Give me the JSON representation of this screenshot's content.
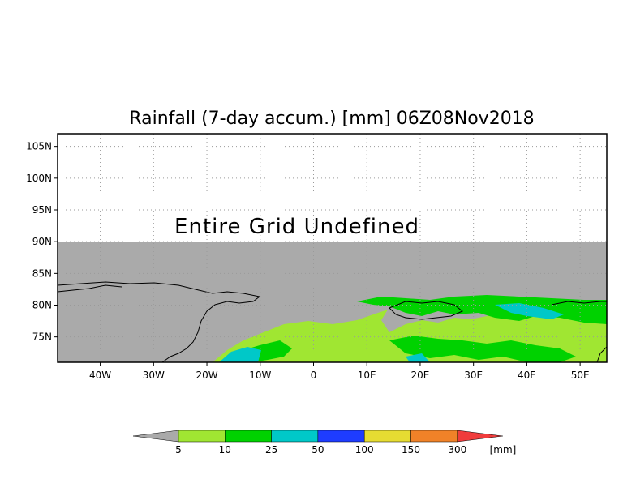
{
  "title": "Rainfall (7-day accum.) [mm] 06Z08Nov2018",
  "overlay_message": "Entire Grid Undefined",
  "map": {
    "lon_range": [
      -48,
      55
    ],
    "lat_range": [
      71,
      107
    ],
    "lon_ticks": [
      {
        "value": -40,
        "label": "40W"
      },
      {
        "value": -30,
        "label": "30W"
      },
      {
        "value": -20,
        "label": "20W"
      },
      {
        "value": -10,
        "label": "10W"
      },
      {
        "value": 0,
        "label": "0"
      },
      {
        "value": 10,
        "label": "10E"
      },
      {
        "value": 20,
        "label": "20E"
      },
      {
        "value": 30,
        "label": "30E"
      },
      {
        "value": 40,
        "label": "40E"
      },
      {
        "value": 50,
        "label": "50E"
      }
    ],
    "lat_ticks": [
      {
        "value": 75,
        "label": "75N"
      },
      {
        "value": 80,
        "label": "80N"
      },
      {
        "value": 85,
        "label": "85N"
      },
      {
        "value": 90,
        "label": "90N"
      },
      {
        "value": 95,
        "label": "95N"
      },
      {
        "value": 100,
        "label": "100N"
      },
      {
        "value": 105,
        "label": "105N"
      }
    ],
    "undefined_above_lat": 90,
    "land_color": "#aaaaaa",
    "colors": {
      "light_green": "#a0e632",
      "green": "#00d200",
      "teal": "#00c8c8"
    }
  },
  "colorbar": {
    "unit": "[mm]",
    "under_color": "#aaaaaa",
    "over_color": "#f03c3c",
    "bins": [
      {
        "color": "#a0e632"
      },
      {
        "color": "#00d200"
      },
      {
        "color": "#00c8c8"
      },
      {
        "color": "#1e3cff"
      },
      {
        "color": "#e6dc32"
      },
      {
        "color": "#f08228"
      }
    ],
    "labels": [
      "5",
      "10",
      "25",
      "50",
      "100",
      "150",
      "300"
    ]
  }
}
